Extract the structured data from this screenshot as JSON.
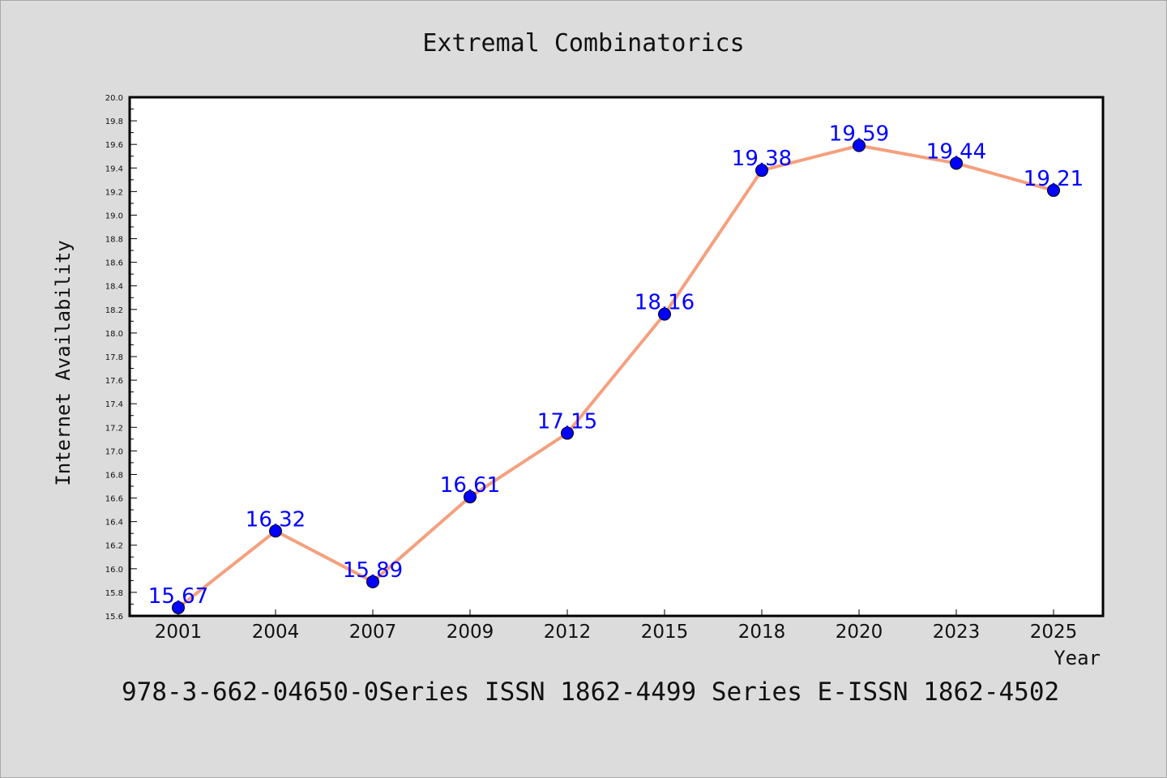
{
  "chart_data": {
    "type": "line",
    "title": "Extremal Combinatorics",
    "xlabel": "Year",
    "ylabel": "Internet Availability",
    "categories": [
      "2001",
      "2004",
      "2007",
      "2009",
      "2012",
      "2015",
      "2018",
      "2020",
      "2023",
      "2025"
    ],
    "series": [
      {
        "values": [
          15.67,
          16.32,
          15.89,
          16.61,
          17.15,
          18.16,
          19.38,
          19.59,
          19.44,
          19.21
        ],
        "line_color": "#f4a07e",
        "marker_color": "#0000ff"
      }
    ],
    "data_labels": [
      "15.67",
      "16.32",
      "15.89",
      "16.61",
      "17.15",
      "18.16",
      "19.38",
      "19.59",
      "19.44",
      "19.21"
    ],
    "yticks": [
      "15.6",
      "15.8",
      "16.0",
      "16.2",
      "16.4",
      "16.6",
      "16.8",
      "17.0",
      "17.2",
      "17.4",
      "17.6",
      "17.8",
      "18.0",
      "18.2",
      "18.4",
      "18.6",
      "18.8",
      "19.0",
      "19.2",
      "19.4",
      "19.6",
      "19.8",
      "20.0"
    ],
    "ylim": [
      15.6,
      20.0
    ],
    "grid": false,
    "legend": "none",
    "label_color": "#0000ff"
  },
  "footer": {
    "text": "978-3-662-04650-0Series ISSN 1862-4499 Series E-ISSN 1862-4502"
  }
}
